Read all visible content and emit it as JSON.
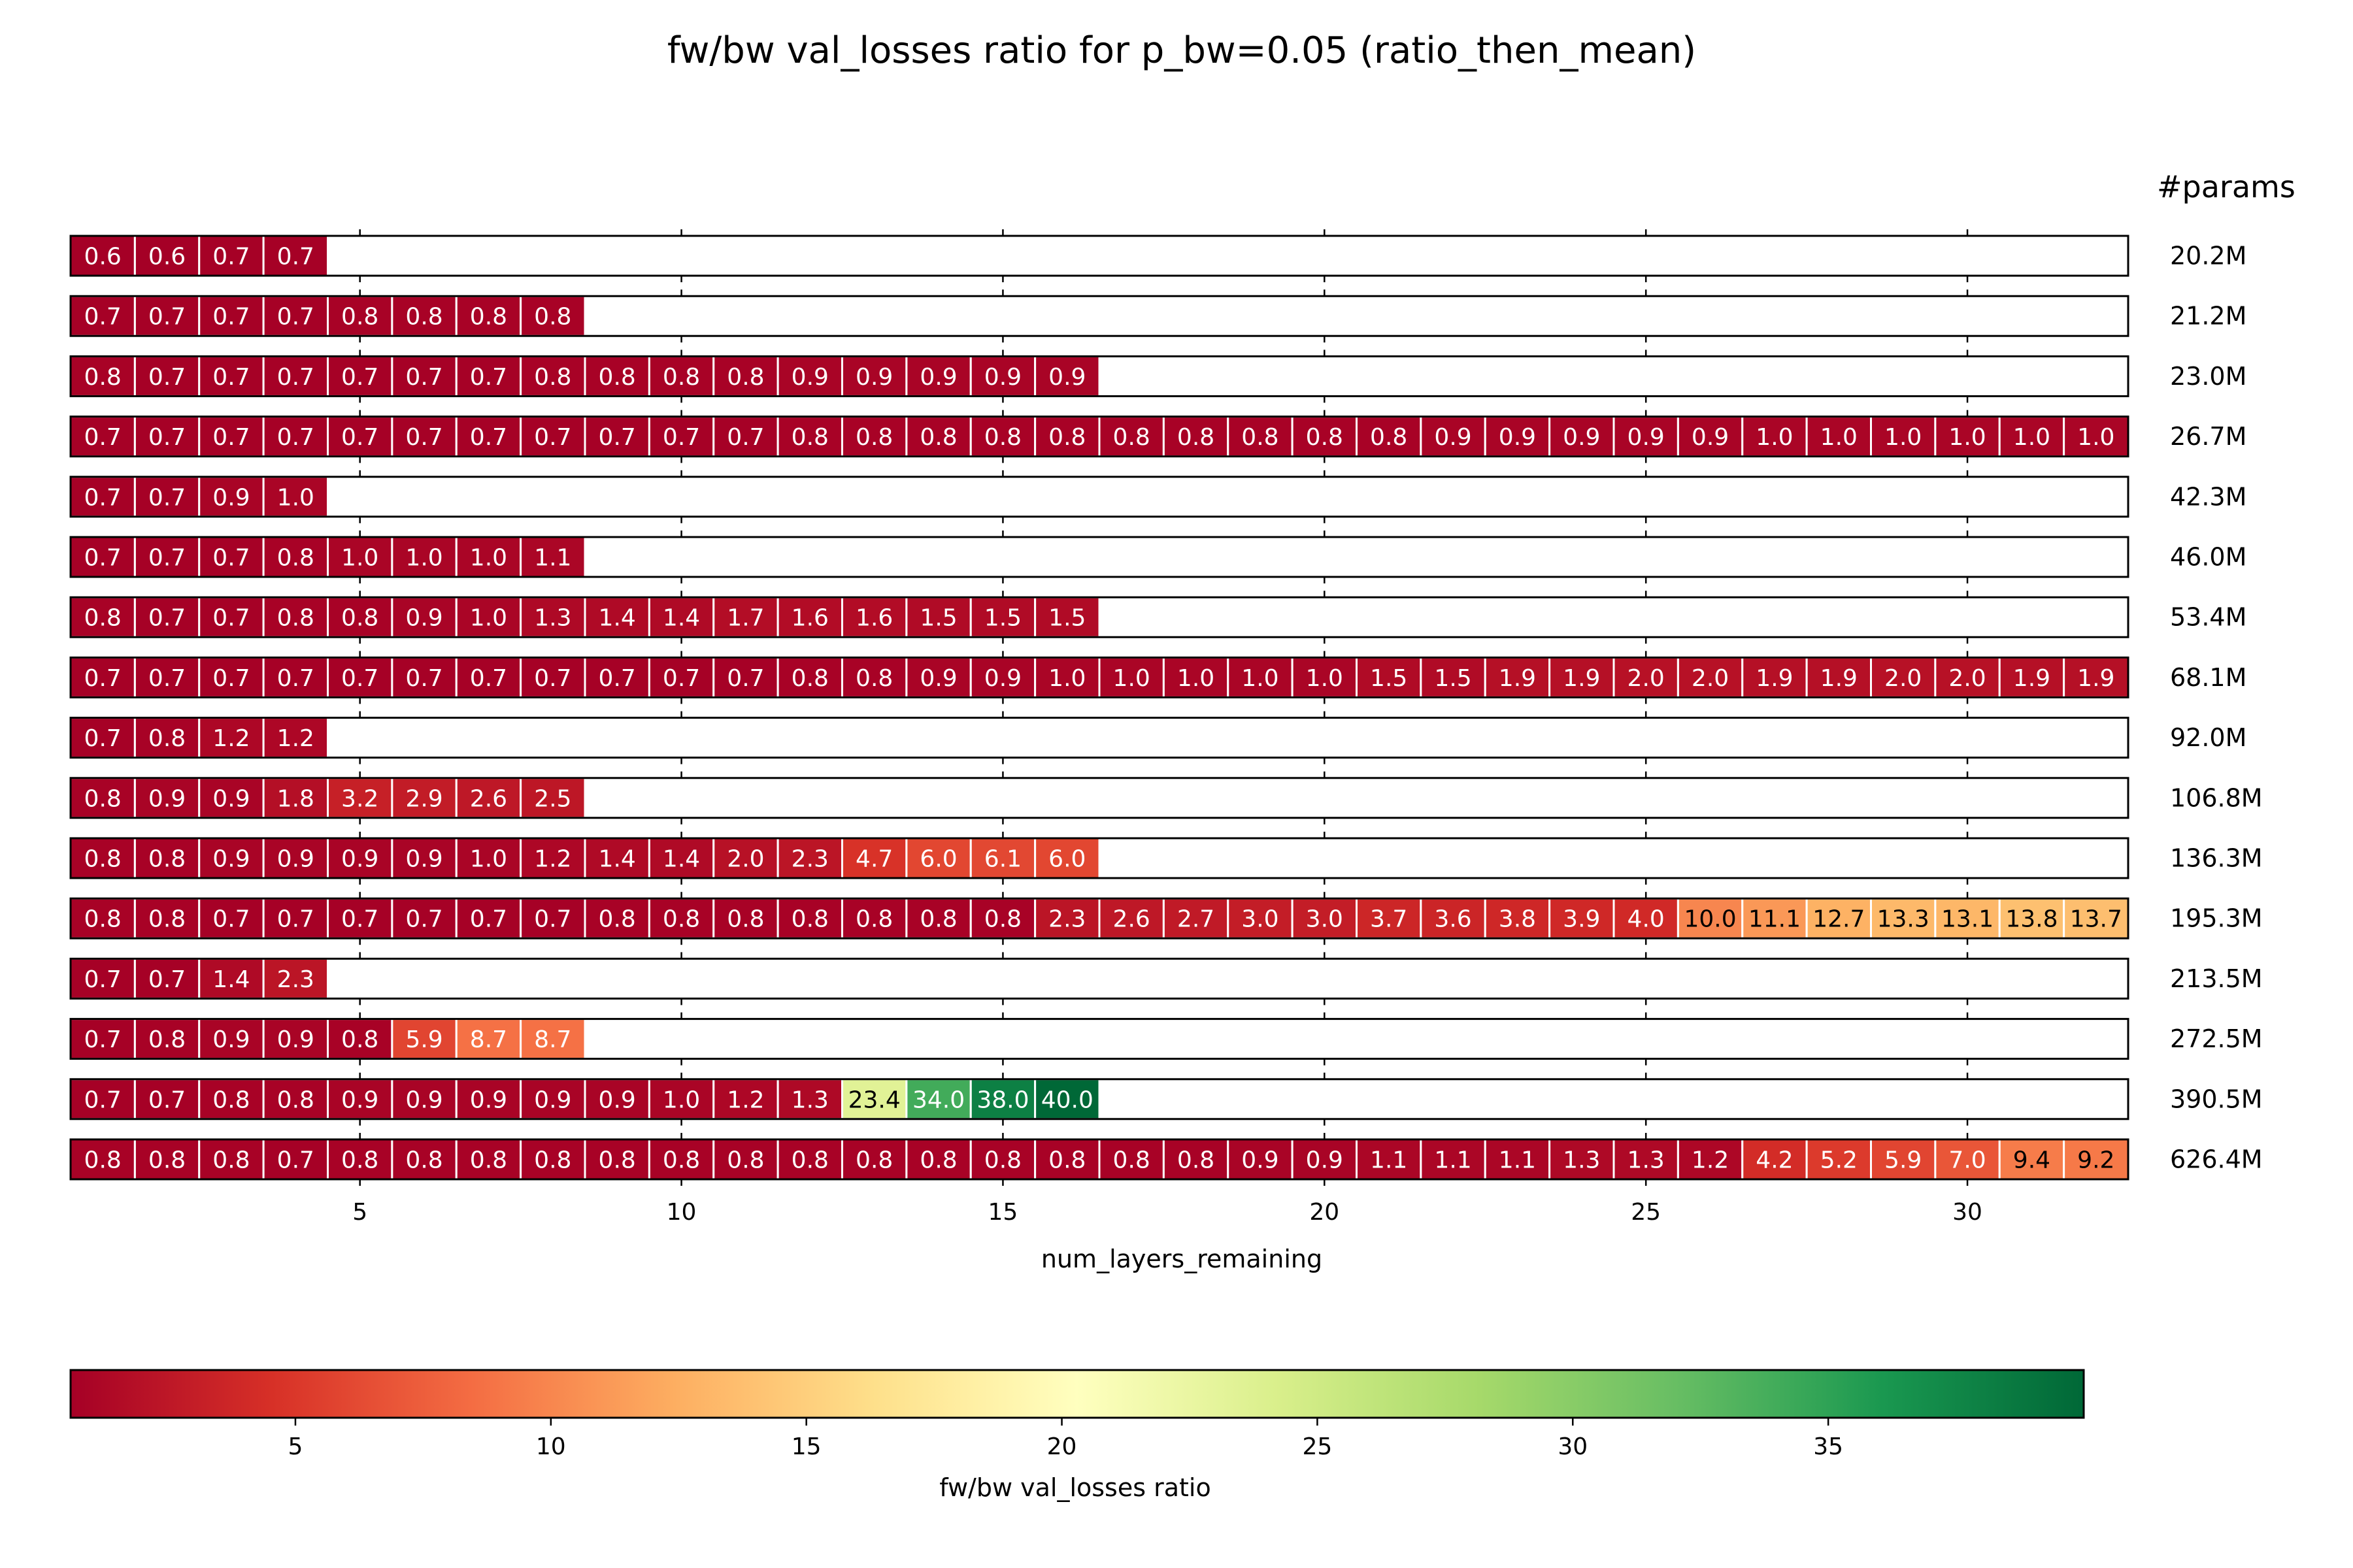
{
  "chart_data": {
    "type": "heatmap",
    "title": "fw/bw val_losses ratio for p_bw=0.05 (ratio_then_mean)",
    "xlabel": "num_layers_remaining",
    "params_header": "#params",
    "colorbar_label": "fw/bw val_losses ratio",
    "x_ticks": [
      5,
      10,
      15,
      20,
      25,
      30
    ],
    "x_range": [
      1,
      32
    ],
    "colorbar_range": [
      0.6,
      40.0
    ],
    "colorbar_ticks": [
      5,
      10,
      15,
      20,
      25,
      30,
      35
    ],
    "colormap": "RdYlGn",
    "grid": false,
    "rows": [
      {
        "params": "20.2M",
        "values": [
          "0.6",
          "0.6",
          "0.7",
          "0.7"
        ]
      },
      {
        "params": "21.2M",
        "values": [
          "0.7",
          "0.7",
          "0.7",
          "0.7",
          "0.8",
          "0.8",
          "0.8",
          "0.8"
        ]
      },
      {
        "params": "23.0M",
        "values": [
          "0.8",
          "0.7",
          "0.7",
          "0.7",
          "0.7",
          "0.7",
          "0.7",
          "0.8",
          "0.8",
          "0.8",
          "0.8",
          "0.9",
          "0.9",
          "0.9",
          "0.9",
          "0.9"
        ]
      },
      {
        "params": "26.7M",
        "values": [
          "0.7",
          "0.7",
          "0.7",
          "0.7",
          "0.7",
          "0.7",
          "0.7",
          "0.7",
          "0.7",
          "0.7",
          "0.7",
          "0.8",
          "0.8",
          "0.8",
          "0.8",
          "0.8",
          "0.8",
          "0.8",
          "0.8",
          "0.8",
          "0.8",
          "0.9",
          "0.9",
          "0.9",
          "0.9",
          "0.9",
          "1.0",
          "1.0",
          "1.0",
          "1.0",
          "1.0",
          "1.0"
        ]
      },
      {
        "params": "42.3M",
        "values": [
          "0.7",
          "0.7",
          "0.9",
          "1.0"
        ]
      },
      {
        "params": "46.0M",
        "values": [
          "0.7",
          "0.7",
          "0.7",
          "0.8",
          "1.0",
          "1.0",
          "1.0",
          "1.1"
        ]
      },
      {
        "params": "53.4M",
        "values": [
          "0.8",
          "0.7",
          "0.7",
          "0.8",
          "0.8",
          "0.9",
          "1.0",
          "1.3",
          "1.4",
          "1.4",
          "1.7",
          "1.6",
          "1.6",
          "1.5",
          "1.5",
          "1.5"
        ]
      },
      {
        "params": "68.1M",
        "values": [
          "0.7",
          "0.7",
          "0.7",
          "0.7",
          "0.7",
          "0.7",
          "0.7",
          "0.7",
          "0.7",
          "0.7",
          "0.7",
          "0.8",
          "0.8",
          "0.9",
          "0.9",
          "1.0",
          "1.0",
          "1.0",
          "1.0",
          "1.0",
          "1.5",
          "1.5",
          "1.9",
          "1.9",
          "2.0",
          "2.0",
          "1.9",
          "1.9",
          "2.0",
          "2.0",
          "1.9",
          "1.9"
        ]
      },
      {
        "params": "92.0M",
        "values": [
          "0.7",
          "0.8",
          "1.2",
          "1.2"
        ]
      },
      {
        "params": "106.8M",
        "values": [
          "0.8",
          "0.9",
          "0.9",
          "1.8",
          "3.2",
          "2.9",
          "2.6",
          "2.5"
        ]
      },
      {
        "params": "136.3M",
        "values": [
          "0.8",
          "0.8",
          "0.9",
          "0.9",
          "0.9",
          "0.9",
          "1.0",
          "1.2",
          "1.4",
          "1.4",
          "2.0",
          "2.3",
          "4.7",
          "6.0",
          "6.1",
          "6.0"
        ]
      },
      {
        "params": "195.3M",
        "values": [
          "0.8",
          "0.8",
          "0.7",
          "0.7",
          "0.7",
          "0.7",
          "0.7",
          "0.7",
          "0.8",
          "0.8",
          "0.8",
          "0.8",
          "0.8",
          "0.8",
          "0.8",
          "2.3",
          "2.6",
          "2.7",
          "3.0",
          "3.0",
          "3.7",
          "3.6",
          "3.8",
          "3.9",
          "4.0",
          "10.0",
          "11.1",
          "12.7",
          "13.3",
          "13.1",
          "13.8",
          "13.7"
        ]
      },
      {
        "params": "213.5M",
        "values": [
          "0.7",
          "0.7",
          "1.4",
          "2.3"
        ]
      },
      {
        "params": "272.5M",
        "values": [
          "0.7",
          "0.8",
          "0.9",
          "0.9",
          "0.8",
          "5.9",
          "8.7",
          "8.7"
        ]
      },
      {
        "params": "390.5M",
        "values": [
          "0.7",
          "0.7",
          "0.8",
          "0.8",
          "0.9",
          "0.9",
          "0.9",
          "0.9",
          "0.9",
          "1.0",
          "1.2",
          "1.3",
          "23.4",
          "34.0",
          "38.0",
          "40.0"
        ]
      },
      {
        "params": "626.4M",
        "values": [
          "0.8",
          "0.8",
          "0.8",
          "0.7",
          "0.8",
          "0.8",
          "0.8",
          "0.8",
          "0.8",
          "0.8",
          "0.8",
          "0.8",
          "0.8",
          "0.8",
          "0.8",
          "0.8",
          "0.8",
          "0.8",
          "0.9",
          "0.9",
          "1.1",
          "1.1",
          "1.1",
          "1.3",
          "1.3",
          "1.2",
          "4.2",
          "5.2",
          "5.9",
          "7.0",
          "9.4",
          "9.2"
        ]
      }
    ]
  }
}
